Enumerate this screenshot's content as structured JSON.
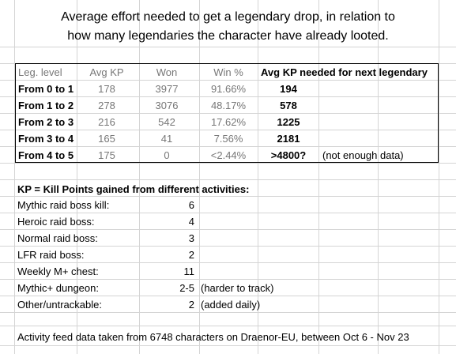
{
  "title": {
    "line1": "Average effort needed to get a legendary drop, in relation to",
    "line2": "how many legendaries the character have already looted."
  },
  "leg_table": {
    "headers": [
      "Leg. level",
      "Avg KP",
      "Won",
      "Win %",
      "Avg KP needed for next legendary"
    ],
    "rows": [
      {
        "level": "From 0 to 1",
        "avg_kp": "178",
        "won": "3977",
        "win_pct": "91.66%",
        "needed": "194",
        "note": ""
      },
      {
        "level": "From 1 to 2",
        "avg_kp": "278",
        "won": "3076",
        "win_pct": "48.17%",
        "needed": "578",
        "note": ""
      },
      {
        "level": "From 2 to 3",
        "avg_kp": "216",
        "won": "542",
        "win_pct": "17.62%",
        "needed": "1225",
        "note": ""
      },
      {
        "level": "From 3 to 4",
        "avg_kp": "165",
        "won": "41",
        "win_pct": "7.56%",
        "needed": "2181",
        "note": ""
      },
      {
        "level": "From 4 to 5",
        "avg_kp": "175",
        "won": "0",
        "win_pct": "<2.44%",
        "needed": ">4800?",
        "note": "(not enough data)"
      }
    ]
  },
  "kp_section": {
    "heading": "KP = Kill Points gained from different activities:",
    "rows": [
      {
        "label": "Mythic raid boss kill:",
        "value": "6",
        "note": ""
      },
      {
        "label": "Heroic raid boss:",
        "value": "4",
        "note": ""
      },
      {
        "label": "Normal raid boss:",
        "value": "3",
        "note": ""
      },
      {
        "label": "LFR raid boss:",
        "value": "2",
        "note": ""
      },
      {
        "label": "Weekly M+ chest:",
        "value": "11",
        "note": ""
      },
      {
        "label": "Mythic+ dungeon:",
        "value": "2-5",
        "note": "(harder to track)"
      },
      {
        "label": "Other/untrackable:",
        "value": "2",
        "note": "(added daily)"
      }
    ]
  },
  "footer": "Activity feed data taken from 6748 characters on Draenor-EU, between Oct 6 - Nov 23",
  "colors": {
    "gridline": "#d4d4d4",
    "header_gray": "#777777",
    "border": "#000000"
  }
}
